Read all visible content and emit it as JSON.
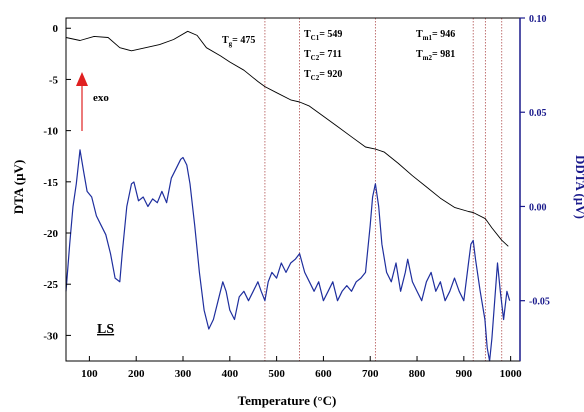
{
  "chart_data": {
    "type": "line",
    "xlabel": "Temperature (°C)",
    "ylabel_left": "DTA (µV)",
    "ylabel_right": "DDTA (µV)",
    "xlim": [
      50,
      1020
    ],
    "ylim_left": [
      -32.5,
      1
    ],
    "ylim_right": [
      -0.082,
      0.1
    ],
    "x_ticks": [
      100,
      200,
      300,
      400,
      500,
      600,
      700,
      800,
      900,
      1000
    ],
    "y_left_ticks": [
      0,
      -5,
      -10,
      -15,
      -20,
      -25,
      -30
    ],
    "y_right_ticks": [
      0.1,
      0.05,
      0.0,
      -0.05
    ],
    "y_right_tick_labels": [
      "0.10",
      "0.05",
      "0.00",
      "-0.05"
    ],
    "sample_label": "LS",
    "exo_label": "exo",
    "grid": false,
    "colors": {
      "dta": "#000000",
      "ddta": "#1f2f9e",
      "right_axis": "#1a1a8c",
      "arrow": "#e02020",
      "vline": "#b05050"
    },
    "annotations": [
      {
        "main": "T",
        "sub": "g",
        "rest": "= 475"
      },
      {
        "main": "T",
        "sub": "C1",
        "rest": "= 549"
      },
      {
        "main": "T",
        "sub": "C2",
        "rest": "= 711"
      },
      {
        "main": "T",
        "sub": "C2",
        "rest": "= 920"
      },
      {
        "main": "T",
        "sub": "m1",
        "rest": "= 946"
      },
      {
        "main": "T",
        "sub": "m2",
        "rest": "= 981"
      }
    ],
    "vertical_lines": [
      475,
      549,
      711,
      920,
      946,
      981
    ],
    "series": [
      {
        "axis": "left",
        "x": [
          50,
          80,
          110,
          140,
          165,
          190,
          220,
          250,
          280,
          310,
          330,
          350,
          380,
          400,
          430,
          460,
          475,
          500,
          530,
          549,
          570,
          600,
          630,
          660,
          690,
          711,
          730,
          760,
          790,
          820,
          850,
          880,
          910,
          920,
          946,
          960,
          981,
          995
        ],
        "y": [
          -0.9,
          -1.2,
          -0.8,
          -0.9,
          -1.9,
          -2.2,
          -1.9,
          -1.6,
          -1.1,
          -0.3,
          -0.7,
          -1.9,
          -2.7,
          -3.3,
          -4.1,
          -5.2,
          -5.7,
          -6.3,
          -7.0,
          -7.2,
          -7.6,
          -8.6,
          -9.6,
          -10.6,
          -11.6,
          -11.8,
          -12.1,
          -13.2,
          -14.4,
          -15.5,
          -16.6,
          -17.5,
          -17.9,
          -18.0,
          -18.6,
          -19.5,
          -20.7,
          -21.3
        ]
      },
      {
        "axis": "right",
        "x": [
          50,
          58,
          65,
          72,
          80,
          88,
          95,
          105,
          115,
          125,
          135,
          145,
          155,
          165,
          170,
          180,
          190,
          195,
          205,
          215,
          225,
          235,
          245,
          255,
          265,
          275,
          285,
          295,
          300,
          308,
          315,
          325,
          335,
          345,
          355,
          365,
          375,
          385,
          392,
          400,
          410,
          420,
          430,
          440,
          450,
          460,
          467,
          475,
          482,
          490,
          500,
          510,
          520,
          530,
          540,
          549,
          560,
          570,
          580,
          590,
          600,
          610,
          620,
          630,
          640,
          650,
          660,
          670,
          680,
          690,
          700,
          705,
          711,
          718,
          725,
          735,
          745,
          755,
          765,
          775,
          780,
          790,
          800,
          810,
          820,
          830,
          840,
          850,
          860,
          870,
          880,
          890,
          900,
          910,
          915,
          920,
          925,
          935,
          945,
          950,
          955,
          960,
          966,
          972,
          978,
          985,
          992,
          998
        ],
        "y": [
          -0.045,
          -0.02,
          0.0,
          0.012,
          0.03,
          0.018,
          0.008,
          0.005,
          -0.005,
          -0.01,
          -0.015,
          -0.025,
          -0.038,
          -0.04,
          -0.025,
          0.0,
          0.012,
          0.013,
          0.003,
          0.005,
          0.0,
          0.004,
          0.002,
          0.008,
          0.002,
          0.015,
          0.02,
          0.025,
          0.026,
          0.022,
          0.012,
          -0.01,
          -0.035,
          -0.055,
          -0.065,
          -0.06,
          -0.05,
          -0.04,
          -0.045,
          -0.055,
          -0.06,
          -0.048,
          -0.045,
          -0.05,
          -0.045,
          -0.04,
          -0.045,
          -0.05,
          -0.04,
          -0.035,
          -0.038,
          -0.03,
          -0.035,
          -0.03,
          -0.028,
          -0.025,
          -0.035,
          -0.04,
          -0.045,
          -0.04,
          -0.05,
          -0.045,
          -0.04,
          -0.05,
          -0.045,
          -0.042,
          -0.045,
          -0.04,
          -0.038,
          -0.035,
          -0.01,
          0.005,
          0.012,
          0.0,
          -0.02,
          -0.035,
          -0.04,
          -0.03,
          -0.045,
          -0.035,
          -0.028,
          -0.04,
          -0.045,
          -0.05,
          -0.04,
          -0.035,
          -0.045,
          -0.04,
          -0.05,
          -0.045,
          -0.038,
          -0.045,
          -0.05,
          -0.03,
          -0.02,
          -0.018,
          -0.028,
          -0.045,
          -0.06,
          -0.075,
          -0.082,
          -0.07,
          -0.05,
          -0.03,
          -0.045,
          -0.06,
          -0.045,
          -0.05
        ]
      }
    ]
  }
}
